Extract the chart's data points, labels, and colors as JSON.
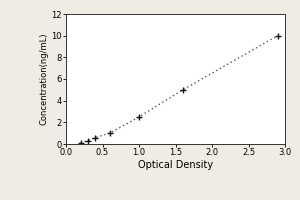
{
  "x_data": [
    0.2,
    0.3,
    0.4,
    0.6,
    1.0,
    1.6,
    2.9
  ],
  "y_data": [
    0.1,
    0.3,
    0.6,
    1.0,
    2.5,
    5.0,
    10.0
  ],
  "xlabel": "Optical Density",
  "ylabel": "Concentration(ng/mL)",
  "xlim": [
    0,
    3.0
  ],
  "ylim": [
    0,
    12
  ],
  "xticks": [
    0,
    0.5,
    1.0,
    1.5,
    2.0,
    2.5,
    3.0
  ],
  "yticks": [
    0,
    2,
    4,
    6,
    8,
    10,
    12
  ],
  "line_color": "#555555",
  "marker_color": "#111111",
  "background_color": "#f0ece4",
  "plot_bg_color": "#ffffff",
  "xlabel_fontsize": 7,
  "ylabel_fontsize": 6,
  "tick_fontsize": 6,
  "border_color": "#333333"
}
